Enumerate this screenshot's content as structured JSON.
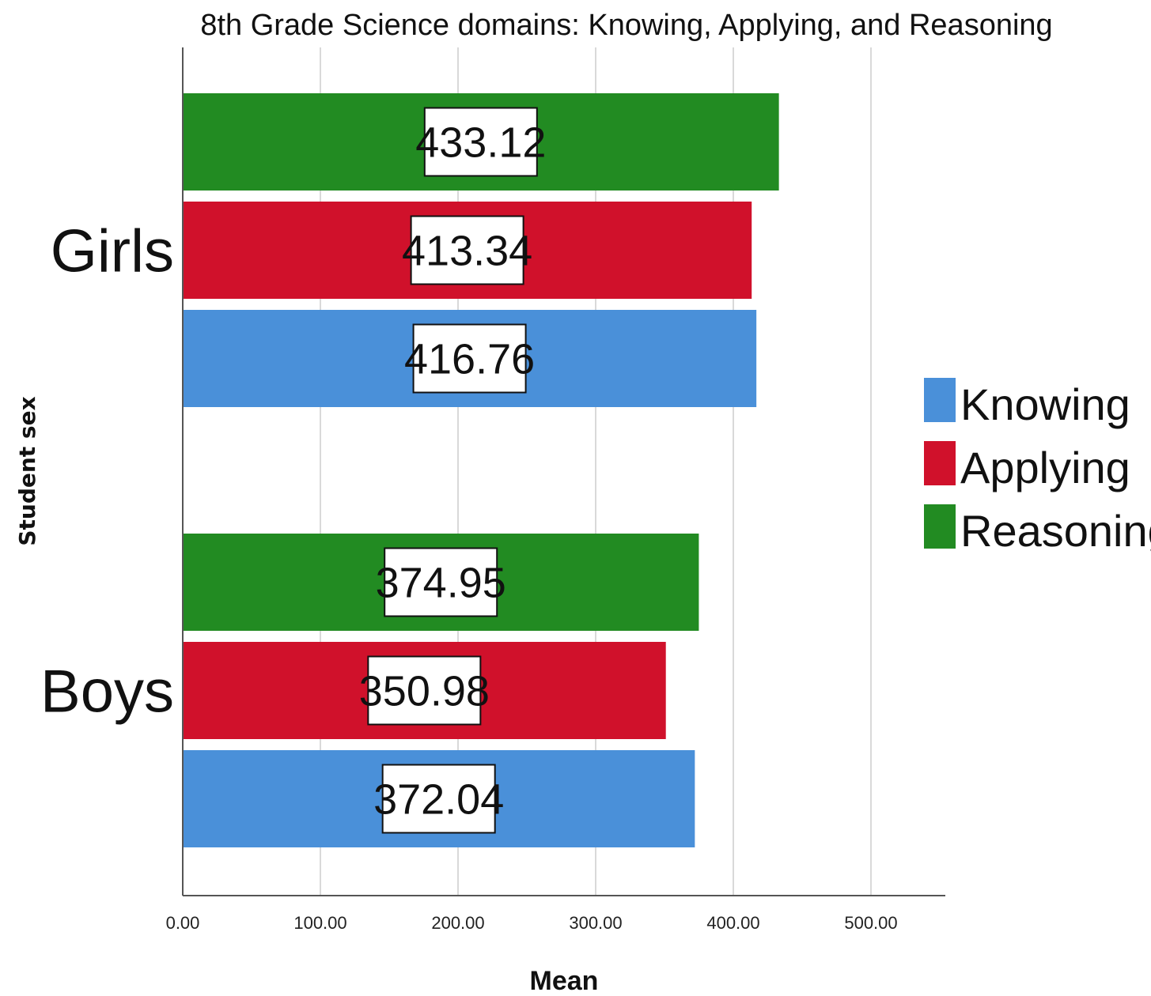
{
  "chart_data": {
    "type": "bar",
    "orientation": "horizontal",
    "title": "8th Grade Science domains: Knowing, Applying, and Reasoning",
    "xlabel": "Mean",
    "ylabel": "Student sex",
    "xlim": [
      0,
      550
    ],
    "xticks": [
      "0.00",
      "100.00",
      "200.00",
      "300.00",
      "400.00",
      "500.00"
    ],
    "grid": true,
    "legend_position": "right",
    "categories": [
      "Girls",
      "Boys"
    ],
    "series": [
      {
        "name": "Knowing",
        "color": "#4a90d9",
        "values": [
          416.76,
          372.04
        ],
        "labels": [
          "416.76",
          "372.04"
        ]
      },
      {
        "name": "Applying",
        "color": "#d0112b",
        "values": [
          413.34,
          350.98
        ],
        "labels": [
          "413.34",
          "350.98"
        ]
      },
      {
        "name": "Reasoning",
        "color": "#228b22",
        "values": [
          433.12,
          374.95
        ],
        "labels": [
          "433.12",
          "374.95"
        ]
      }
    ]
  }
}
